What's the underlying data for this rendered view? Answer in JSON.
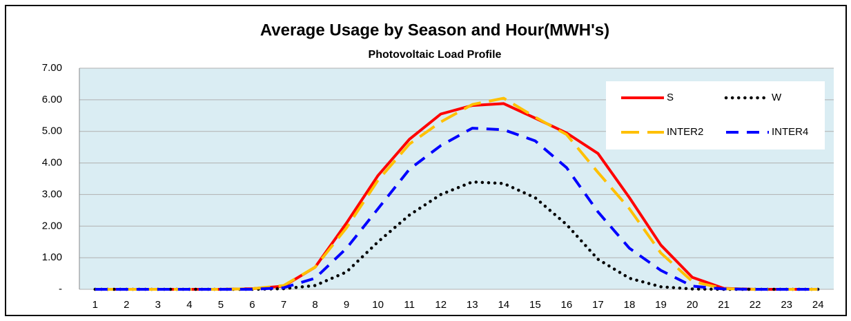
{
  "chart_data": {
    "type": "line",
    "title": "Average Usage by Season and Hour(MWH's)",
    "subtitle": "Photovoltaic Load Profile",
    "categories": [
      "1",
      "2",
      "3",
      "4",
      "5",
      "6",
      "7",
      "8",
      "9",
      "10",
      "11",
      "12",
      "13",
      "14",
      "15",
      "16",
      "17",
      "18",
      "19",
      "20",
      "21",
      "22",
      "23",
      "24"
    ],
    "series": [
      {
        "name": "S",
        "color": "#ff0000",
        "style": "solid",
        "values": [
          0,
          0,
          0,
          0,
          0,
          0.02,
          0.1,
          0.7,
          2.1,
          3.6,
          4.75,
          5.55,
          5.82,
          5.88,
          5.42,
          4.95,
          4.3,
          2.9,
          1.4,
          0.38,
          0.03,
          0,
          0,
          0
        ]
      },
      {
        "name": "W",
        "color": "#000000",
        "style": "dotted",
        "values": [
          0,
          0,
          0,
          0,
          0,
          0,
          0.02,
          0.12,
          0.55,
          1.5,
          2.35,
          3.0,
          3.4,
          3.35,
          2.9,
          2.05,
          0.95,
          0.35,
          0.08,
          0.01,
          0,
          0,
          0,
          0
        ]
      },
      {
        "name": "INTER2",
        "color": "#ffc000",
        "style": "longdash",
        "values": [
          0,
          0,
          0,
          0,
          0,
          0.02,
          0.12,
          0.7,
          1.95,
          3.45,
          4.6,
          5.3,
          5.85,
          6.05,
          5.45,
          4.9,
          3.7,
          2.55,
          1.15,
          0.25,
          0.02,
          0,
          0,
          0
        ]
      },
      {
        "name": "INTER4",
        "color": "#0000ff",
        "style": "dash",
        "values": [
          0,
          0,
          0,
          0,
          0,
          0,
          0.05,
          0.35,
          1.3,
          2.55,
          3.8,
          4.55,
          5.1,
          5.05,
          4.7,
          3.85,
          2.45,
          1.3,
          0.6,
          0.1,
          0.01,
          0,
          0,
          0
        ]
      }
    ],
    "ylim": [
      0,
      7
    ],
    "yticks": [
      {
        "value": 0,
        "label": "-"
      },
      {
        "value": 1,
        "label": "1.00"
      },
      {
        "value": 2,
        "label": "2.00"
      },
      {
        "value": 3,
        "label": "3.00"
      },
      {
        "value": 4,
        "label": "4.00"
      },
      {
        "value": 5,
        "label": "5.00"
      },
      {
        "value": 6,
        "label": "6.00"
      },
      {
        "value": 7,
        "label": "7.00"
      }
    ],
    "grid": true,
    "legend": "upper right"
  }
}
